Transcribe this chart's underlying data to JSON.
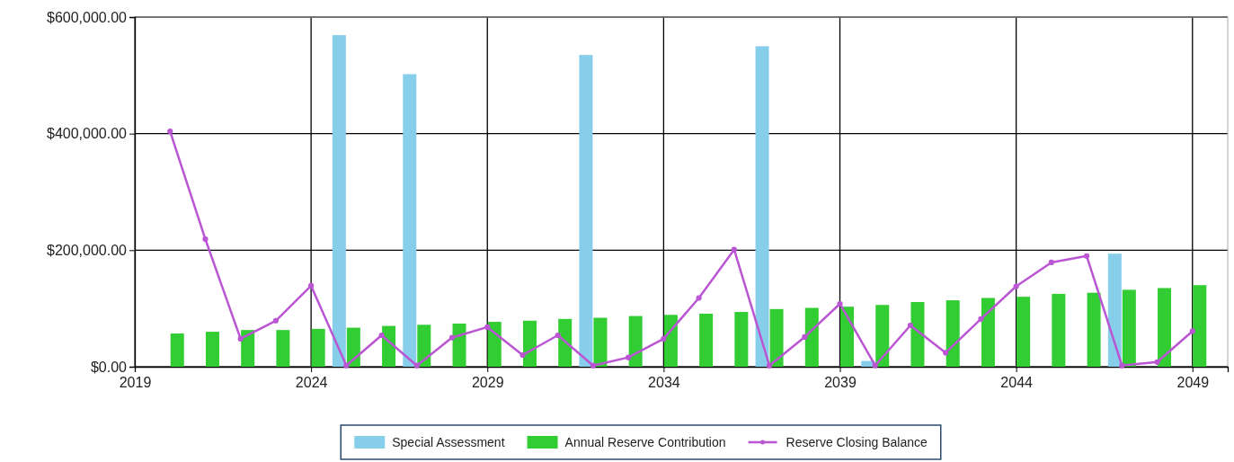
{
  "chart_data": {
    "type": "bar",
    "x": [
      2020,
      2021,
      2022,
      2023,
      2024,
      2025,
      2026,
      2027,
      2028,
      2029,
      2030,
      2031,
      2032,
      2033,
      2034,
      2035,
      2036,
      2037,
      2038,
      2039,
      2040,
      2041,
      2042,
      2043,
      2044,
      2045,
      2046,
      2047,
      2048,
      2049
    ],
    "series": [
      {
        "name": "Special Assessment",
        "color": "#87ceeb",
        "values": [
          null,
          null,
          null,
          null,
          null,
          569000,
          null,
          502000,
          null,
          null,
          null,
          null,
          535000,
          null,
          null,
          null,
          null,
          550000,
          null,
          null,
          10000,
          null,
          null,
          null,
          null,
          null,
          null,
          194000,
          null,
          null
        ]
      },
      {
        "name": "Annual Reserve Contribution",
        "color": "#32cd32",
        "values": [
          57000,
          60000,
          63000,
          63000,
          65000,
          67000,
          70000,
          72000,
          74000,
          77000,
          79000,
          82000,
          84000,
          87000,
          89000,
          91000,
          94000,
          99000,
          101000,
          103000,
          106000,
          111000,
          114000,
          118000,
          120000,
          125000,
          127000,
          132000,
          135000,
          140000
        ]
      },
      {
        "name": "Reserve Closing Balance",
        "type": "line",
        "color": "#ba55d3",
        "values": [
          404000,
          219000,
          48000,
          79000,
          139000,
          2000,
          54000,
          2000,
          50000,
          68000,
          20000,
          54000,
          2000,
          16000,
          48000,
          118000,
          201000,
          2000,
          51000,
          108000,
          2000,
          71000,
          24000,
          82000,
          138000,
          179000,
          190000,
          2000,
          8000,
          61000
        ]
      }
    ],
    "xlim": [
      2019,
      2050
    ],
    "xticks": [
      2019,
      2024,
      2029,
      2034,
      2039,
      2044,
      2049
    ],
    "ylim": [
      0,
      600000
    ],
    "yticks": [
      {
        "value": 0,
        "label": "$0.00"
      },
      {
        "value": 200000,
        "label": "$200,000.00"
      },
      {
        "value": 400000,
        "label": "$400,000.00"
      },
      {
        "value": 600000,
        "label": "$600,000.00"
      }
    ],
    "grid": true,
    "legend": "bottom",
    "marker": "circle",
    "line_style": "solid"
  }
}
